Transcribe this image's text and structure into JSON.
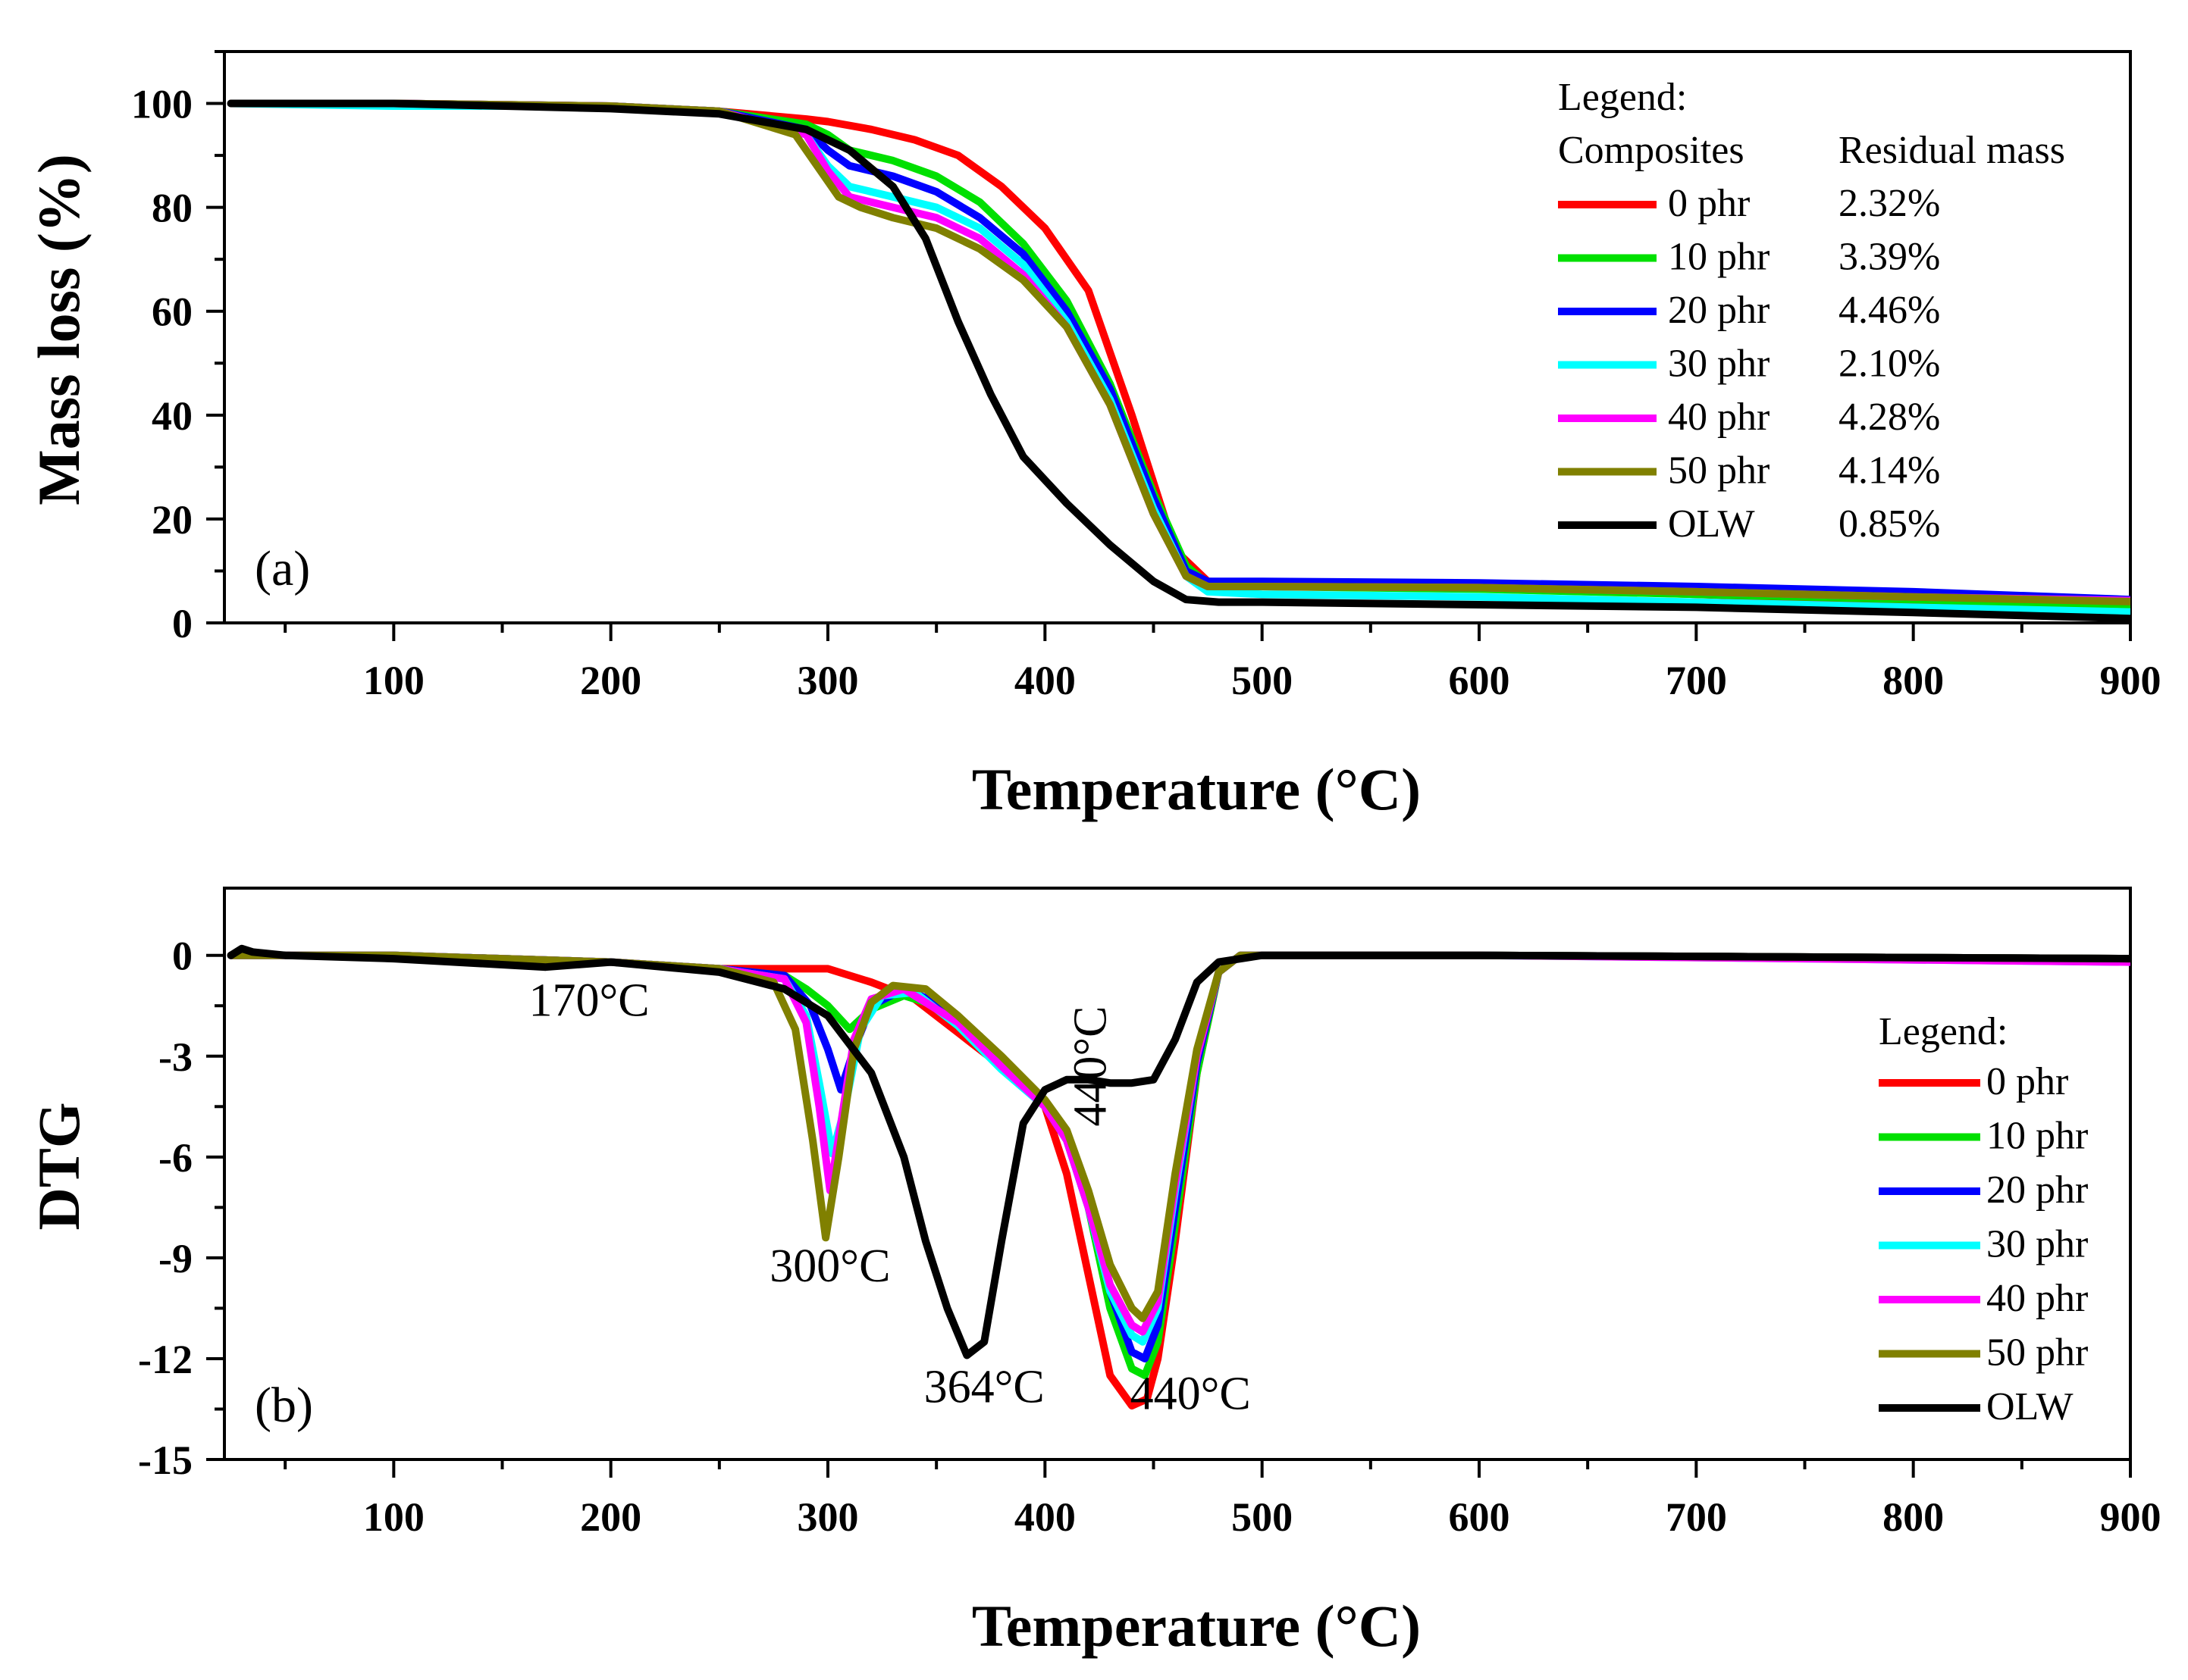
{
  "chart_data": [
    {
      "type": "line",
      "panel_label": "(a)",
      "xlabel": "Temperature (°C)",
      "ylabel": "Mass loss (%)",
      "xlim": [
        22,
        900
      ],
      "ylim": [
        0,
        110
      ],
      "xticks": [
        100,
        200,
        300,
        400,
        500,
        600,
        700,
        800,
        900
      ],
      "yticks": [
        0,
        20,
        40,
        60,
        80,
        100
      ],
      "legend": {
        "title": "Legend:",
        "col1_header": "Composites",
        "col2_header": "Residual mass",
        "position": "top-right"
      },
      "series": [
        {
          "name": "0 phr",
          "color": "#ff0000",
          "residual": "2.32%",
          "x": [
            25,
            100,
            200,
            250,
            290,
            300,
            320,
            340,
            360,
            380,
            400,
            420,
            440,
            460,
            475,
            500,
            600,
            700,
            800,
            900
          ],
          "y": [
            100,
            100,
            99.5,
            98.5,
            97,
            96.5,
            95,
            93,
            90,
            84,
            76,
            64,
            40,
            14,
            8,
            7.5,
            6.8,
            5.5,
            4,
            2.3
          ]
        },
        {
          "name": "10 phr",
          "color": "#00e000",
          "residual": "3.39%",
          "x": [
            25,
            100,
            200,
            250,
            290,
            300,
            310,
            330,
            350,
            370,
            390,
            410,
            430,
            450,
            465,
            475,
            500,
            600,
            700,
            800,
            900
          ],
          "y": [
            100,
            100,
            99.5,
            98.5,
            96,
            94,
            91,
            89,
            86,
            81,
            73,
            62,
            46,
            25,
            11,
            7.5,
            7,
            6.5,
            5.5,
            4.5,
            3.4
          ]
        },
        {
          "name": "20 phr",
          "color": "#0000ff",
          "residual": "4.46%",
          "x": [
            25,
            100,
            200,
            250,
            290,
            300,
            310,
            330,
            350,
            370,
            390,
            410,
            430,
            450,
            465,
            475,
            500,
            600,
            700,
            800,
            900
          ],
          "y": [
            100,
            100,
            99.5,
            98.5,
            95,
            91,
            88,
            86,
            83,
            78,
            71,
            60,
            45,
            24,
            10,
            8,
            8,
            7.7,
            7,
            6,
            4.5
          ]
        },
        {
          "name": "30 phr",
          "color": "#00ffff",
          "residual": "2.10%",
          "x": [
            25,
            100,
            200,
            250,
            290,
            300,
            310,
            330,
            350,
            370,
            390,
            410,
            430,
            450,
            465,
            475,
            500,
            600,
            700,
            800,
            900
          ],
          "y": [
            100,
            99.5,
            99.5,
            98.5,
            94,
            88,
            84,
            82,
            80,
            76,
            69,
            58,
            43,
            22,
            9,
            6,
            5.5,
            5,
            4,
            3,
            2.1
          ]
        },
        {
          "name": "40 phr",
          "color": "#ff00ff",
          "residual": "4.28%",
          "x": [
            25,
            100,
            200,
            250,
            290,
            300,
            310,
            330,
            350,
            370,
            390,
            410,
            430,
            450,
            465,
            475,
            500,
            600,
            700,
            800,
            900
          ],
          "y": [
            100,
            100,
            99.5,
            98.5,
            94,
            87,
            82,
            80,
            78,
            74,
            67,
            57,
            42,
            21,
            9,
            7,
            7,
            6.8,
            6,
            5,
            4.3
          ]
        },
        {
          "name": "50 phr",
          "color": "#808000",
          "residual": "4.14%",
          "x": [
            25,
            100,
            200,
            250,
            285,
            295,
            305,
            315,
            330,
            350,
            370,
            390,
            410,
            430,
            450,
            465,
            475,
            500,
            600,
            700,
            800,
            900
          ],
          "y": [
            100,
            100,
            99.5,
            98.5,
            94,
            88,
            82,
            80,
            78,
            76,
            72,
            66,
            57,
            42,
            21,
            9,
            7,
            7,
            6.8,
            6,
            5,
            4.1
          ]
        },
        {
          "name": "OLW",
          "color": "#000000",
          "residual": "0.85%",
          "x": [
            25,
            100,
            200,
            250,
            290,
            310,
            330,
            345,
            360,
            375,
            390,
            410,
            430,
            450,
            465,
            480,
            500,
            600,
            700,
            800,
            900
          ],
          "y": [
            100,
            100,
            99,
            98,
            95,
            91,
            84,
            74,
            58,
            44,
            32,
            23,
            15,
            8,
            4.5,
            4,
            4,
            3.5,
            3,
            2,
            0.85
          ]
        }
      ]
    },
    {
      "type": "line",
      "panel_label": "(b)",
      "xlabel": "Temperature (°C)",
      "ylabel": "DTG",
      "xlim": [
        22,
        900
      ],
      "ylim": [
        -15,
        2
      ],
      "xticks": [
        100,
        200,
        300,
        400,
        500,
        600,
        700,
        800,
        900
      ],
      "yticks": [
        0,
        -3,
        -6,
        -9,
        -12,
        -15
      ],
      "legend": {
        "title": "Legend:",
        "position": "right"
      },
      "annotations": [
        {
          "text": "170°C",
          "x": 190,
          "y": -1.8
        },
        {
          "text": "300°C",
          "x": 301,
          "y": -9.7
        },
        {
          "text": "364°C",
          "x": 372,
          "y": -13.3
        },
        {
          "text": "440°C",
          "x": 467,
          "y": -13.5
        },
        {
          "text": "440°C",
          "x": 428,
          "y": -3.3,
          "rotated": true
        }
      ],
      "series": [
        {
          "name": "0 phr",
          "color": "#ff0000",
          "x": [
            25,
            100,
            200,
            250,
            280,
            300,
            320,
            340,
            360,
            370,
            380,
            390,
            400,
            410,
            420,
            430,
            440,
            447,
            452,
            460,
            470,
            480,
            490,
            600,
            900
          ],
          "y": [
            0,
            0,
            -0.2,
            -0.4,
            -0.4,
            -0.4,
            -0.8,
            -1.3,
            -2.3,
            -2.8,
            -3.3,
            -3.8,
            -4.5,
            -6.5,
            -9.5,
            -12.5,
            -13.4,
            -13.2,
            -12,
            -8.5,
            -3.5,
            -0.5,
            0,
            0,
            -0.1
          ]
        },
        {
          "name": "10 phr",
          "color": "#00e000",
          "x": [
            25,
            100,
            200,
            250,
            280,
            290,
            300,
            310,
            320,
            335,
            350,
            370,
            390,
            400,
            410,
            420,
            430,
            440,
            446,
            452,
            460,
            470,
            480,
            490,
            600,
            900
          ],
          "y": [
            0,
            0,
            -0.2,
            -0.4,
            -0.6,
            -1.0,
            -1.5,
            -2.2,
            -1.6,
            -1.2,
            -1.5,
            -2.5,
            -3.8,
            -4.5,
            -5.5,
            -7.5,
            -10.5,
            -12.3,
            -12.5,
            -11.5,
            -8,
            -3.5,
            -0.5,
            0,
            0,
            -0.1
          ]
        },
        {
          "name": "20 phr",
          "color": "#0000ff",
          "x": [
            25,
            100,
            200,
            250,
            280,
            292,
            300,
            306,
            312,
            320,
            335,
            350,
            370,
            390,
            400,
            410,
            420,
            430,
            440,
            446,
            452,
            460,
            470,
            480,
            490,
            600,
            900
          ],
          "y": [
            0,
            0,
            -0.2,
            -0.4,
            -0.6,
            -1.5,
            -2.8,
            -4.0,
            -2.8,
            -1.5,
            -1.0,
            -1.4,
            -2.4,
            -3.8,
            -4.5,
            -5.5,
            -7.5,
            -10,
            -11.8,
            -12,
            -11,
            -7.5,
            -3.2,
            -0.5,
            0,
            0,
            -0.1
          ]
        },
        {
          "name": "30 phr",
          "color": "#00ffff",
          "x": [
            25,
            100,
            200,
            250,
            280,
            290,
            296,
            302,
            308,
            315,
            325,
            340,
            360,
            380,
            400,
            410,
            420,
            430,
            440,
            445,
            452,
            460,
            470,
            480,
            490,
            600,
            900
          ],
          "y": [
            0,
            0,
            -0.2,
            -0.4,
            -0.7,
            -1.8,
            -3.8,
            -5.9,
            -4.5,
            -2.2,
            -1.2,
            -1.1,
            -2.1,
            -3.4,
            -4.5,
            -5.5,
            -7.5,
            -10,
            -11.3,
            -11.5,
            -10.5,
            -7,
            -3,
            -0.5,
            0,
            0,
            -0.2
          ]
        },
        {
          "name": "40 phr",
          "color": "#ff00ff",
          "x": [
            25,
            100,
            200,
            250,
            280,
            290,
            296,
            301,
            306,
            312,
            320,
            335,
            360,
            380,
            400,
            410,
            420,
            430,
            440,
            445,
            452,
            460,
            470,
            480,
            490,
            600,
            900
          ],
          "y": [
            0,
            0,
            -0.2,
            -0.4,
            -0.7,
            -2.0,
            -4.5,
            -7.0,
            -5.0,
            -2.5,
            -1.3,
            -1.0,
            -2.0,
            -3.3,
            -4.5,
            -5.5,
            -7.5,
            -9.8,
            -11.0,
            -11.2,
            -10.3,
            -6.8,
            -3,
            -0.5,
            0,
            0,
            -0.2
          ]
        },
        {
          "name": "50 phr",
          "color": "#808000",
          "x": [
            25,
            100,
            200,
            250,
            275,
            285,
            293,
            299,
            305,
            312,
            320,
            330,
            345,
            360,
            380,
            400,
            410,
            420,
            430,
            440,
            445,
            452,
            460,
            470,
            480,
            490,
            600,
            900
          ],
          "y": [
            0,
            0,
            -0.2,
            -0.4,
            -0.8,
            -2.2,
            -5.5,
            -8.4,
            -6.0,
            -2.8,
            -1.4,
            -0.9,
            -1.0,
            -1.8,
            -3.0,
            -4.3,
            -5.2,
            -7.0,
            -9.2,
            -10.5,
            -10.8,
            -10.0,
            -6.5,
            -2.8,
            -0.5,
            0,
            0,
            -0.1
          ]
        },
        {
          "name": "OLW",
          "color": "#000000",
          "x": [
            25,
            30,
            35,
            50,
            100,
            170,
            200,
            250,
            280,
            300,
            320,
            335,
            345,
            355,
            364,
            372,
            380,
            390,
            400,
            410,
            420,
            430,
            440,
            450,
            460,
            470,
            480,
            500,
            600,
            900
          ],
          "y": [
            0,
            0.2,
            0.1,
            0,
            -0.1,
            -0.35,
            -0.2,
            -0.5,
            -1.0,
            -1.8,
            -3.5,
            -6.0,
            -8.5,
            -10.5,
            -11.9,
            -11.5,
            -8.5,
            -5.0,
            -4.0,
            -3.7,
            -3.7,
            -3.8,
            -3.8,
            -3.7,
            -2.5,
            -0.8,
            -0.2,
            0,
            0,
            -0.1
          ]
        }
      ]
    }
  ]
}
